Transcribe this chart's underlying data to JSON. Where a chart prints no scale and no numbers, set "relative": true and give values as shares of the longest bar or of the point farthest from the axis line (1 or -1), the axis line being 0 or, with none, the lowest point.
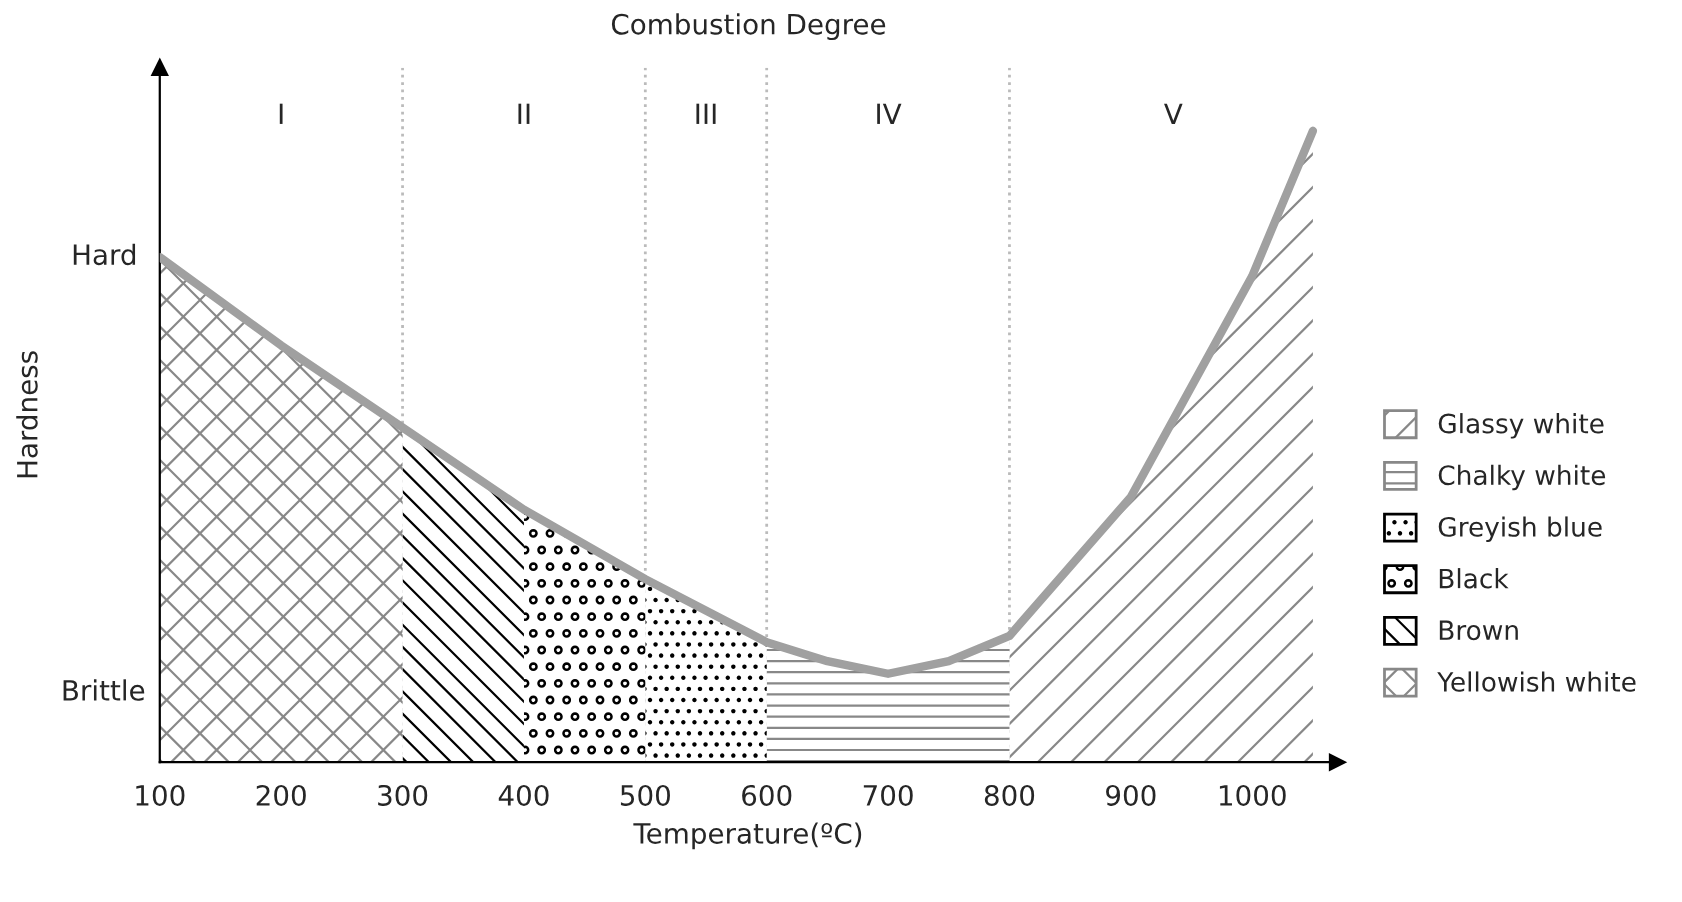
{
  "chart_data": {
    "type": "area",
    "title": "Combustion Degree",
    "xlabel": "Temperature(ºC)",
    "ylabel": "Hardness",
    "xlim": [
      100,
      1070
    ],
    "xticks": [
      100,
      200,
      300,
      400,
      500,
      600,
      700,
      800,
      900,
      1000
    ],
    "relative": true,
    "grid": false,
    "legend": "right",
    "series": [
      {
        "name": "Glassy white",
        "color": "#888888",
        "x": [
          800,
          900,
          1000,
          1050
        ],
        "values": [
          0.2,
          0.42,
          0.77,
          1.0
        ]
      },
      {
        "name": "Chalky white",
        "color": "#888888",
        "x": [
          600,
          650,
          700,
          750,
          800
        ],
        "values": [
          0.19,
          0.16,
          0.14,
          0.16,
          0.2
        ]
      },
      {
        "name": "Greyish blue",
        "color": "#000000",
        "x": [
          500,
          600
        ],
        "values": [
          0.29,
          0.19
        ]
      },
      {
        "name": "Black",
        "color": "#000000",
        "x": [
          400,
          500
        ],
        "values": [
          0.4,
          0.29
        ]
      },
      {
        "name": "Brown",
        "color": "#000000",
        "x": [
          300,
          400
        ],
        "values": [
          0.53,
          0.4
        ]
      },
      {
        "name": "Yellowish white",
        "color": "#888888",
        "x": [
          100,
          200,
          300
        ],
        "values": [
          0.8,
          0.66,
          0.53
        ]
      },
      {
        "type": "line",
        "color": "#a0a0a0",
        "x": [
          100,
          200,
          300,
          400,
          500,
          600,
          650,
          700,
          750,
          800,
          900,
          1000,
          1050
        ],
        "values": [
          0.8,
          0.66,
          0.53,
          0.4,
          0.29,
          0.19,
          0.16,
          0.14,
          0.16,
          0.2,
          0.42,
          0.77,
          1.0
        ]
      }
    ],
    "ref_lines": [
      {
        "axis": "x",
        "value": 300,
        "color": "#bbbbbb",
        "line_style": "dotted"
      },
      {
        "axis": "x",
        "value": 500,
        "color": "#bbbbbb",
        "line_style": "dotted"
      },
      {
        "axis": "x",
        "value": 600,
        "color": "#bbbbbb",
        "line_style": "dotted"
      },
      {
        "axis": "x",
        "value": 800,
        "color": "#bbbbbb",
        "line_style": "dotted"
      }
    ],
    "annotations": [
      "I",
      "II",
      "III",
      "IV",
      "V",
      {
        "text": "Hard",
        "x": 100,
        "y": 0.8
      },
      "Brittle"
    ]
  }
}
